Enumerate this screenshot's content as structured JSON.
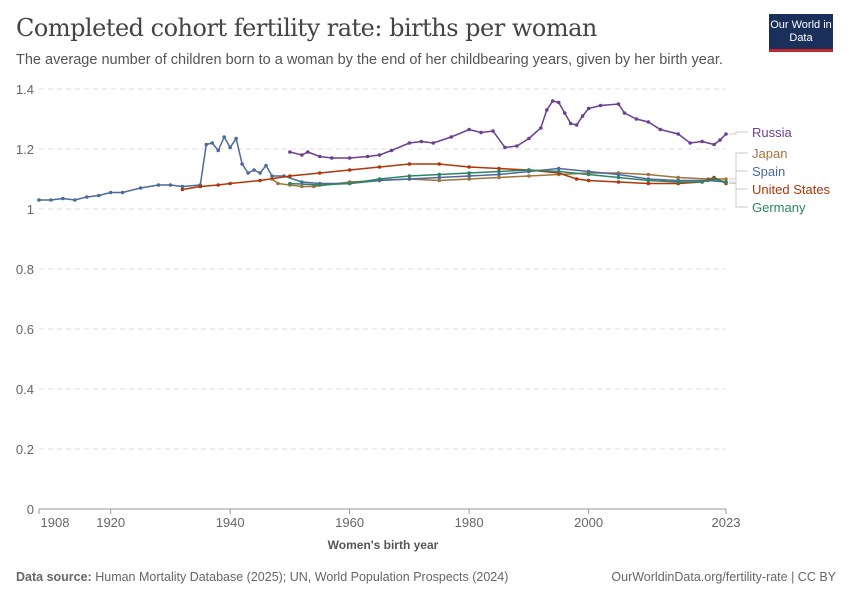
{
  "header": {
    "title": "Completed cohort fertility rate: births per woman",
    "subtitle": "The average number of children born to a woman by the end of her childbearing years, given by her birth year.",
    "logo": "Our World in Data"
  },
  "footer": {
    "source_label": "Data source:",
    "source": "Human Mortality Database (2025); UN, World Population Prospects (2024)",
    "link": "OurWorldinData.org/fertility-rate | CC BY"
  },
  "chart_data": {
    "type": "line",
    "title": "Completed cohort fertility rate: births per woman",
    "xlabel": "Women's birth year",
    "ylabel": "",
    "xlim": [
      1908,
      2023
    ],
    "ylim": [
      0,
      1.4
    ],
    "xticks": [
      1908,
      1920,
      1940,
      1960,
      1980,
      2000,
      2023
    ],
    "yticks": [
      0,
      0.2,
      0.4,
      0.6,
      0.8,
      1,
      1.2,
      1.4
    ],
    "grid": "horizontal dashed",
    "legend": "right, line-end labels",
    "series": [
      {
        "name": "Russia",
        "color": "#6d3e91",
        "points": [
          [
            1950,
            1.19
          ],
          [
            1952,
            1.18
          ],
          [
            1953,
            1.19
          ],
          [
            1955,
            1.175
          ],
          [
            1957,
            1.17
          ],
          [
            1960,
            1.17
          ],
          [
            1963,
            1.175
          ],
          [
            1965,
            1.18
          ],
          [
            1967,
            1.195
          ],
          [
            1970,
            1.22
          ],
          [
            1972,
            1.225
          ],
          [
            1974,
            1.22
          ],
          [
            1977,
            1.24
          ],
          [
            1980,
            1.265
          ],
          [
            1982,
            1.255
          ],
          [
            1984,
            1.26
          ],
          [
            1986,
            1.205
          ],
          [
            1988,
            1.21
          ],
          [
            1990,
            1.235
          ],
          [
            1992,
            1.27
          ],
          [
            1993,
            1.33
          ],
          [
            1994,
            1.36
          ],
          [
            1995,
            1.355
          ],
          [
            1996,
            1.32
          ],
          [
            1997,
            1.285
          ],
          [
            1998,
            1.28
          ],
          [
            1999,
            1.31
          ],
          [
            2000,
            1.335
          ],
          [
            2002,
            1.345
          ],
          [
            2005,
            1.35
          ],
          [
            2006,
            1.32
          ],
          [
            2008,
            1.3
          ],
          [
            2010,
            1.29
          ],
          [
            2012,
            1.265
          ],
          [
            2015,
            1.25
          ],
          [
            2017,
            1.22
          ],
          [
            2019,
            1.225
          ],
          [
            2021,
            1.215
          ],
          [
            2022,
            1.23
          ],
          [
            2023,
            1.25
          ]
        ]
      },
      {
        "name": "Japan",
        "color": "#a2733d",
        "points": [
          [
            1947,
            1.1
          ],
          [
            1948,
            1.085
          ],
          [
            1950,
            1.08
          ],
          [
            1952,
            1.075
          ],
          [
            1954,
            1.075
          ],
          [
            1960,
            1.09
          ],
          [
            1965,
            1.095
          ],
          [
            1970,
            1.1
          ],
          [
            1975,
            1.095
          ],
          [
            1980,
            1.1
          ],
          [
            1985,
            1.105
          ],
          [
            1990,
            1.11
          ],
          [
            1995,
            1.115
          ],
          [
            2000,
            1.12
          ],
          [
            2005,
            1.12
          ],
          [
            2010,
            1.115
          ],
          [
            2015,
            1.105
          ],
          [
            2020,
            1.1
          ],
          [
            2023,
            1.1
          ]
        ]
      },
      {
        "name": "Spain",
        "color": "#4c6a9c",
        "points": [
          [
            1908,
            1.03
          ],
          [
            1910,
            1.03
          ],
          [
            1912,
            1.035
          ],
          [
            1914,
            1.03
          ],
          [
            1916,
            1.04
          ],
          [
            1918,
            1.045
          ],
          [
            1920,
            1.055
          ],
          [
            1922,
            1.055
          ],
          [
            1925,
            1.07
          ],
          [
            1928,
            1.08
          ],
          [
            1930,
            1.08
          ],
          [
            1932,
            1.075
          ],
          [
            1935,
            1.08
          ],
          [
            1936,
            1.215
          ],
          [
            1937,
            1.22
          ],
          [
            1938,
            1.195
          ],
          [
            1939,
            1.24
          ],
          [
            1940,
            1.205
          ],
          [
            1941,
            1.235
          ],
          [
            1942,
            1.15
          ],
          [
            1943,
            1.12
          ],
          [
            1944,
            1.13
          ],
          [
            1945,
            1.12
          ],
          [
            1946,
            1.145
          ],
          [
            1947,
            1.11
          ],
          [
            1949,
            1.11
          ],
          [
            1952,
            1.09
          ],
          [
            1955,
            1.085
          ],
          [
            1960,
            1.085
          ],
          [
            1965,
            1.095
          ],
          [
            1970,
            1.1
          ],
          [
            1975,
            1.105
          ],
          [
            1980,
            1.11
          ],
          [
            1985,
            1.115
          ],
          [
            1990,
            1.125
          ],
          [
            1995,
            1.135
          ],
          [
            2000,
            1.125
          ],
          [
            2005,
            1.115
          ],
          [
            2010,
            1.1
          ],
          [
            2015,
            1.095
          ],
          [
            2020,
            1.095
          ],
          [
            2023,
            1.09
          ]
        ]
      },
      {
        "name": "United States",
        "color": "#b13507",
        "points": [
          [
            1932,
            1.065
          ],
          [
            1935,
            1.075
          ],
          [
            1938,
            1.08
          ],
          [
            1940,
            1.085
          ],
          [
            1945,
            1.095
          ],
          [
            1950,
            1.11
          ],
          [
            1955,
            1.12
          ],
          [
            1960,
            1.13
          ],
          [
            1965,
            1.14
          ],
          [
            1970,
            1.15
          ],
          [
            1975,
            1.15
          ],
          [
            1980,
            1.14
          ],
          [
            1985,
            1.135
          ],
          [
            1990,
            1.13
          ],
          [
            1995,
            1.12
          ],
          [
            1998,
            1.1
          ],
          [
            2000,
            1.095
          ],
          [
            2005,
            1.09
          ],
          [
            2010,
            1.085
          ],
          [
            2015,
            1.085
          ],
          [
            2019,
            1.09
          ],
          [
            2021,
            1.105
          ],
          [
            2023,
            1.085
          ]
        ]
      },
      {
        "name": "Germany",
        "color": "#2c8465",
        "points": [
          [
            1950,
            1.085
          ],
          [
            1955,
            1.08
          ],
          [
            1960,
            1.085
          ],
          [
            1965,
            1.1
          ],
          [
            1970,
            1.11
          ],
          [
            1975,
            1.115
          ],
          [
            1980,
            1.12
          ],
          [
            1985,
            1.125
          ],
          [
            1990,
            1.13
          ],
          [
            1995,
            1.125
          ],
          [
            2000,
            1.115
          ],
          [
            2005,
            1.105
          ],
          [
            2010,
            1.095
          ],
          [
            2015,
            1.09
          ],
          [
            2019,
            1.09
          ],
          [
            2021,
            1.1
          ],
          [
            2023,
            1.09
          ]
        ]
      }
    ]
  }
}
